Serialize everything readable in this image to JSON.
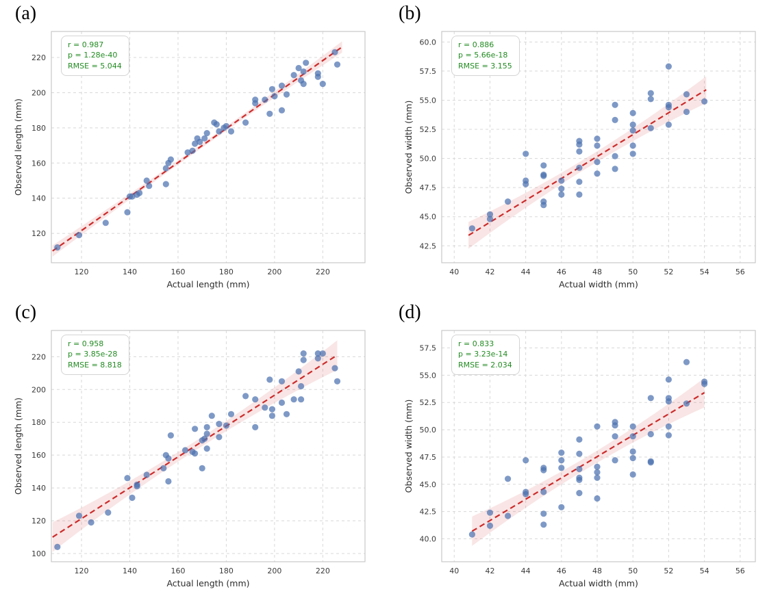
{
  "figure": {
    "background": "#ffffff",
    "panel_labels": [
      "(a)",
      "(b)",
      "(c)",
      "(d)"
    ]
  },
  "style": {
    "point_color": "#4c72b0",
    "point_opacity": 0.72,
    "point_radius": 4.6,
    "fit_line_color": "#cc2b2b",
    "ci_band_color": "#cc2b2b",
    "ci_band_opacity": 0.12,
    "grid_color": "#d8d8d8",
    "spine_color": "#c9c9c9",
    "tick_color": "#3a3a3a",
    "axis_label_color": "#2b2b2b",
    "stats_color": "#228b22"
  },
  "chart_data": [
    {
      "id": "a",
      "panel_label": "(a)",
      "type": "scatter",
      "xlabel": "Actual length (mm)",
      "ylabel": "Observed length (mm)",
      "xlim": [
        107.5,
        237.5
      ],
      "ylim": [
        103.3,
        234.8
      ],
      "xticks": [
        120,
        140,
        160,
        180,
        200,
        220
      ],
      "yticks": [
        120,
        140,
        160,
        180,
        200,
        220
      ],
      "xtick_labels": [
        "120",
        "140",
        "160",
        "180",
        "200",
        "220"
      ],
      "ytick_labels": [
        "120",
        "140",
        "160",
        "180",
        "200",
        "220"
      ],
      "grid": true,
      "legend": "none",
      "stats": {
        "r": 0.987,
        "p": "1.28e-40",
        "rmse": 5.044
      },
      "stats_lines": [
        "r = 0.987",
        "p = 1.28e-40",
        "RMSE = 5.044"
      ],
      "regression_line": {
        "x": [
          108,
          228
        ],
        "y": [
          110,
          226
        ]
      },
      "ci_halfwidth": {
        "end": 3.2,
        "mid": 1.2
      },
      "points": [
        [
          110,
          112
        ],
        [
          119,
          119
        ],
        [
          130,
          126
        ],
        [
          139,
          132
        ],
        [
          140,
          141
        ],
        [
          141,
          141
        ],
        [
          143,
          142
        ],
        [
          144,
          143
        ],
        [
          147,
          150
        ],
        [
          148,
          147
        ],
        [
          155,
          148
        ],
        [
          155,
          157
        ],
        [
          156,
          160
        ],
        [
          157,
          162
        ],
        [
          164,
          166
        ],
        [
          166,
          167
        ],
        [
          167,
          171
        ],
        [
          168,
          174
        ],
        [
          169,
          172
        ],
        [
          171,
          174
        ],
        [
          172,
          177
        ],
        [
          175,
          183
        ],
        [
          176,
          182
        ],
        [
          177,
          178
        ],
        [
          179,
          180
        ],
        [
          180,
          181
        ],
        [
          182,
          178
        ],
        [
          188,
          183
        ],
        [
          192,
          194
        ],
        [
          192,
          196
        ],
        [
          196,
          196
        ],
        [
          198,
          188
        ],
        [
          199,
          202
        ],
        [
          200,
          198
        ],
        [
          203,
          190
        ],
        [
          203,
          204
        ],
        [
          205,
          199
        ],
        [
          208,
          210
        ],
        [
          210,
          214
        ],
        [
          211,
          207
        ],
        [
          212,
          205
        ],
        [
          212,
          212
        ],
        [
          213,
          217
        ],
        [
          218,
          209
        ],
        [
          218,
          211
        ],
        [
          220,
          205
        ],
        [
          225,
          223
        ],
        [
          226,
          216
        ]
      ]
    },
    {
      "id": "b",
      "panel_label": "(b)",
      "type": "scatter",
      "xlabel": "Actual width (mm)",
      "ylabel": "Observed width (mm)",
      "xlim": [
        39.3,
        56.85
      ],
      "ylim": [
        41.05,
        60.9
      ],
      "xticks": [
        40,
        42,
        44,
        46,
        48,
        50,
        52,
        54,
        56
      ],
      "yticks": [
        42.5,
        45.0,
        47.5,
        50.0,
        52.5,
        55.0,
        57.5,
        60.0
      ],
      "xtick_labels": [
        "40",
        "42",
        "44",
        "46",
        "48",
        "50",
        "52",
        "54",
        "56"
      ],
      "ytick_labels": [
        "42.5",
        "45.0",
        "47.5",
        "50.0",
        "52.5",
        "55.0",
        "57.5",
        "60.0"
      ],
      "grid": true,
      "legend": "none",
      "stats": {
        "r": 0.886,
        "p": "5.66e-18",
        "rmse": 3.155
      },
      "stats_lines": [
        "r = 0.886",
        "p = 5.66e-18",
        "RMSE = 3.155"
      ],
      "regression_line": {
        "x": [
          40.8,
          54.1
        ],
        "y": [
          43.4,
          55.9
        ]
      },
      "ci_halfwidth": {
        "end": 1.15,
        "mid": 0.45
      },
      "points": [
        [
          41,
          44.0
        ],
        [
          42,
          45.2
        ],
        [
          42,
          44.8
        ],
        [
          43,
          46.3
        ],
        [
          44,
          50.4
        ],
        [
          44,
          48.1
        ],
        [
          44,
          47.8
        ],
        [
          45,
          49.4
        ],
        [
          45,
          48.6
        ],
        [
          45,
          48.5
        ],
        [
          45,
          46.3
        ],
        [
          45,
          46.0
        ],
        [
          46,
          48.1
        ],
        [
          46,
          47.4
        ],
        [
          46,
          46.9
        ],
        [
          47,
          51.5
        ],
        [
          47,
          51.2
        ],
        [
          47,
          50.6
        ],
        [
          47,
          49.2
        ],
        [
          47,
          48.0
        ],
        [
          47,
          46.9
        ],
        [
          48,
          51.7
        ],
        [
          48,
          51.1
        ],
        [
          48,
          49.7
        ],
        [
          48,
          48.7
        ],
        [
          49,
          54.6
        ],
        [
          49,
          53.3
        ],
        [
          49,
          50.2
        ],
        [
          49,
          49.1
        ],
        [
          50,
          53.9
        ],
        [
          50,
          52.9
        ],
        [
          50,
          52.4
        ],
        [
          50,
          51.1
        ],
        [
          50,
          50.4
        ],
        [
          51,
          55.6
        ],
        [
          51,
          55.1
        ],
        [
          51,
          52.6
        ],
        [
          52,
          57.9
        ],
        [
          52,
          54.6
        ],
        [
          52,
          54.4
        ],
        [
          52,
          52.9
        ],
        [
          53,
          55.5
        ],
        [
          53,
          54.0
        ],
        [
          54,
          54.9
        ]
      ]
    },
    {
      "id": "c",
      "panel_label": "(c)",
      "type": "scatter",
      "xlabel": "Actual length (mm)",
      "ylabel": "Observed length (mm)",
      "xlim": [
        107.5,
        237.5
      ],
      "ylim": [
        95.0,
        236.0
      ],
      "xticks": [
        120,
        140,
        160,
        180,
        200,
        220
      ],
      "yticks": [
        100,
        120,
        140,
        160,
        180,
        200,
        220
      ],
      "xtick_labels": [
        "120",
        "140",
        "160",
        "180",
        "200",
        "220"
      ],
      "ytick_labels": [
        "100",
        "120",
        "140",
        "160",
        "180",
        "200",
        "220"
      ],
      "grid": true,
      "legend": "none",
      "stats": {
        "r": 0.958,
        "p": "3.85e-28",
        "rmse": 8.818
      },
      "stats_lines": [
        "r = 0.958",
        "p = 3.85e-28",
        "RMSE = 8.818"
      ],
      "regression_line": {
        "x": [
          108,
          226
        ],
        "y": [
          110,
          221
        ]
      },
      "ci_halfwidth": {
        "end": 9.0,
        "mid": 2.8
      },
      "points": [
        [
          110,
          104
        ],
        [
          119,
          123
        ],
        [
          124,
          119
        ],
        [
          131,
          125
        ],
        [
          139,
          146
        ],
        [
          141,
          134
        ],
        [
          143,
          141
        ],
        [
          143,
          142
        ],
        [
          147,
          148
        ],
        [
          154,
          152
        ],
        [
          155,
          160
        ],
        [
          156,
          158
        ],
        [
          156,
          144
        ],
        [
          157,
          172
        ],
        [
          163,
          163
        ],
        [
          166,
          162
        ],
        [
          167,
          161
        ],
        [
          167,
          176
        ],
        [
          170,
          152
        ],
        [
          170,
          169
        ],
        [
          171,
          170
        ],
        [
          172,
          164
        ],
        [
          172,
          173
        ],
        [
          172,
          177
        ],
        [
          174,
          184
        ],
        [
          177,
          171
        ],
        [
          177,
          179
        ],
        [
          180,
          178
        ],
        [
          182,
          185
        ],
        [
          188,
          196
        ],
        [
          192,
          177
        ],
        [
          192,
          194
        ],
        [
          196,
          189
        ],
        [
          198,
          206
        ],
        [
          199,
          184
        ],
        [
          199,
          188
        ],
        [
          203,
          192
        ],
        [
          203,
          205
        ],
        [
          205,
          185
        ],
        [
          208,
          194
        ],
        [
          210,
          211
        ],
        [
          211,
          194
        ],
        [
          211,
          202
        ],
        [
          212,
          218
        ],
        [
          212,
          222
        ],
        [
          218,
          219
        ],
        [
          218,
          222
        ],
        [
          220,
          222
        ],
        [
          225,
          213
        ],
        [
          226,
          205
        ]
      ]
    },
    {
      "id": "d",
      "panel_label": "(d)",
      "type": "scatter",
      "xlabel": "Actual width (mm)",
      "ylabel": "Observed width (mm)",
      "xlim": [
        39.3,
        56.85
      ],
      "ylim": [
        37.9,
        59.1
      ],
      "xticks": [
        40,
        42,
        44,
        46,
        48,
        50,
        52,
        54,
        56
      ],
      "yticks": [
        40.0,
        42.5,
        45.0,
        47.5,
        50.0,
        52.5,
        55.0,
        57.5
      ],
      "xtick_labels": [
        "40",
        "42",
        "44",
        "46",
        "48",
        "50",
        "52",
        "54",
        "56"
      ],
      "ytick_labels": [
        "40.0",
        "42.5",
        "45.0",
        "47.5",
        "50.0",
        "52.5",
        "55.0",
        "57.5"
      ],
      "grid": true,
      "legend": "none",
      "stats": {
        "r": 0.833,
        "p": "3.23e-14",
        "rmse": 2.034
      },
      "stats_lines": [
        "r = 0.833",
        "p = 3.23e-14",
        "RMSE = 2.034"
      ],
      "regression_line": {
        "x": [
          41,
          54
        ],
        "y": [
          40.7,
          53.4
        ]
      },
      "ci_halfwidth": {
        "end": 1.35,
        "mid": 0.55
      },
      "points": [
        [
          41,
          40.4
        ],
        [
          42,
          42.4
        ],
        [
          42,
          41.2
        ],
        [
          43,
          45.5
        ],
        [
          43,
          42.1
        ],
        [
          44,
          47.2
        ],
        [
          44,
          44.3
        ],
        [
          44,
          44.1
        ],
        [
          45,
          46.5
        ],
        [
          45,
          46.3
        ],
        [
          45,
          44.3
        ],
        [
          45,
          42.3
        ],
        [
          45,
          41.3
        ],
        [
          46,
          47.9
        ],
        [
          46,
          47.2
        ],
        [
          46,
          46.5
        ],
        [
          46,
          42.9
        ],
        [
          47,
          49.1
        ],
        [
          47,
          47.8
        ],
        [
          47,
          46.4
        ],
        [
          47,
          45.6
        ],
        [
          47,
          45.4
        ],
        [
          47,
          44.2
        ],
        [
          48,
          50.3
        ],
        [
          48,
          46.6
        ],
        [
          48,
          46.1
        ],
        [
          48,
          45.6
        ],
        [
          48,
          43.7
        ],
        [
          49,
          50.7
        ],
        [
          49,
          50.4
        ],
        [
          49,
          49.4
        ],
        [
          49,
          47.2
        ],
        [
          50,
          50.3
        ],
        [
          50,
          49.4
        ],
        [
          50,
          48.0
        ],
        [
          50,
          47.4
        ],
        [
          50,
          45.9
        ],
        [
          51,
          52.9
        ],
        [
          51,
          49.6
        ],
        [
          51,
          47.1
        ],
        [
          51,
          47.0
        ],
        [
          52,
          54.6
        ],
        [
          52,
          52.9
        ],
        [
          52,
          52.6
        ],
        [
          52,
          50.3
        ],
        [
          52,
          49.5
        ],
        [
          53,
          56.2
        ],
        [
          53,
          52.4
        ],
        [
          54,
          54.4
        ],
        [
          54,
          54.2
        ]
      ]
    }
  ]
}
